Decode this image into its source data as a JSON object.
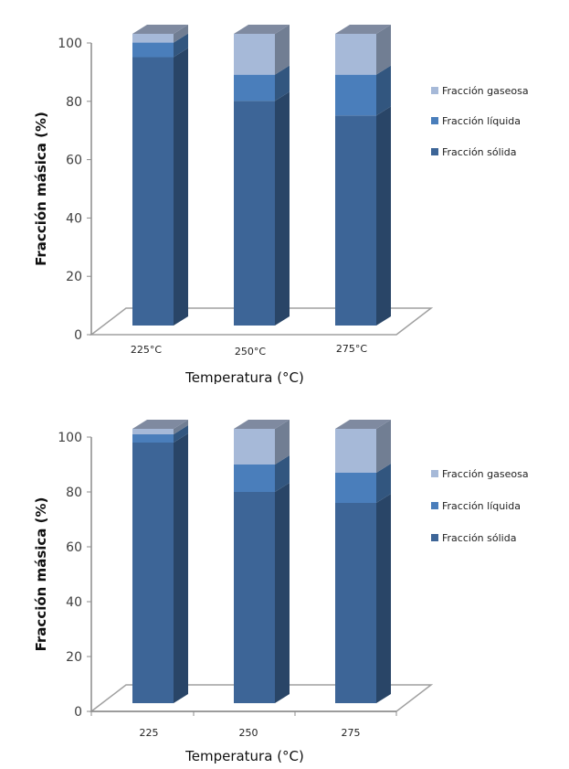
{
  "chart_data": [
    {
      "type": "bar",
      "stacked": true,
      "style": "3d-column",
      "title": "",
      "xlabel": "Temperatura (°C)",
      "ylabel": "Fracción másica (%)",
      "ylim": [
        0,
        100
      ],
      "yticks": [
        "0",
        "20",
        "40",
        "60",
        "80",
        "100"
      ],
      "categories": [
        "225°C",
        "250°C",
        "275°C"
      ],
      "series": [
        {
          "name": "Fracción sólida",
          "values": [
            92,
            77,
            72
          ],
          "color": "#3d6597"
        },
        {
          "name": "Fracción líquida",
          "values": [
            5,
            9,
            14
          ],
          "color": "#4a7ebb"
        },
        {
          "name": "Fracción gaseosa",
          "values": [
            3,
            14,
            14
          ],
          "color": "#a6b9d8"
        }
      ],
      "legend": {
        "position": "right",
        "order": [
          "Fracción gaseosa",
          "Fracción líquida",
          "Fracción sólida"
        ]
      },
      "grid": false
    },
    {
      "type": "bar",
      "stacked": true,
      "style": "3d-column",
      "title": "",
      "xlabel": "Temperatura (°C)",
      "ylabel": "Fracción másica (%)",
      "ylim": [
        0,
        100
      ],
      "yticks": [
        "0",
        "20",
        "40",
        "60",
        "80",
        "100"
      ],
      "categories": [
        "225",
        "250",
        "275"
      ],
      "series": [
        {
          "name": "Fracción sólida",
          "values": [
            95,
            77,
            73
          ],
          "color": "#3d6597"
        },
        {
          "name": "Fracción líquida",
          "values": [
            3,
            10,
            11
          ],
          "color": "#4a7ebb"
        },
        {
          "name": "Fracción gaseosa",
          "values": [
            2,
            13,
            16
          ],
          "color": "#a6b9d8"
        }
      ],
      "legend": {
        "position": "right",
        "order": [
          "Fracción gaseosa",
          "Fracción líquida",
          "Fracción sólida"
        ]
      },
      "grid": false
    }
  ]
}
